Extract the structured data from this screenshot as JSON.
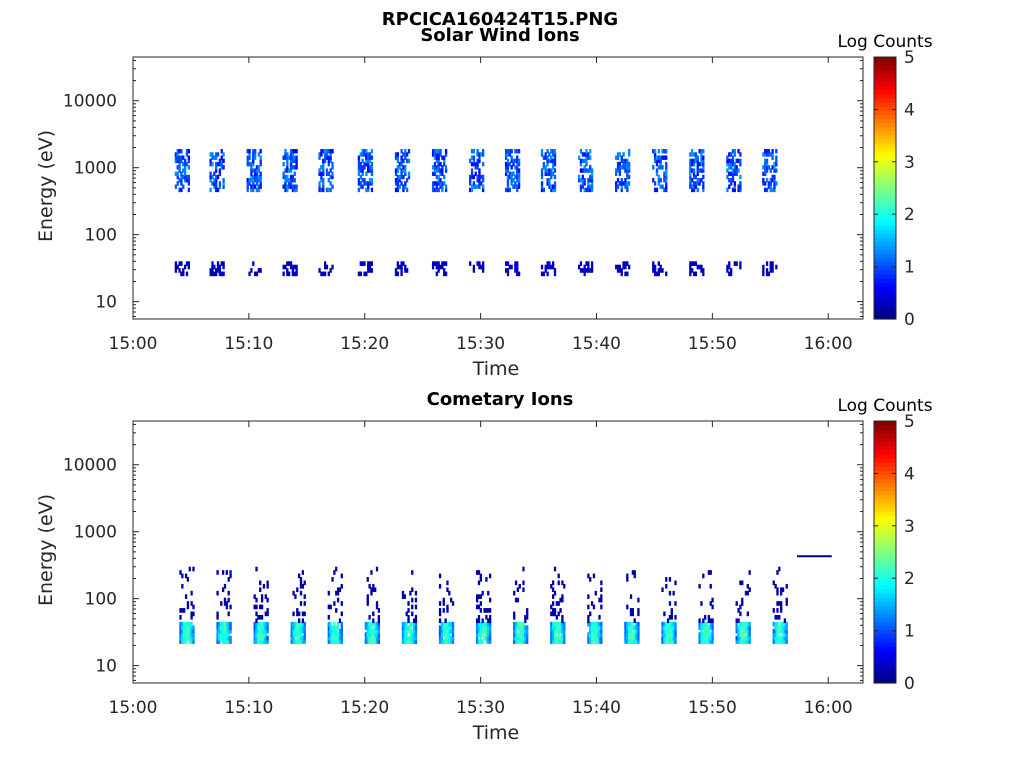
{
  "figure_title": "RPCICA160424T15.PNG",
  "chart_data": [
    {
      "type": "heatmap",
      "title": "Solar Wind Ions",
      "xlabel": "Time",
      "ylabel": "Energy (eV)",
      "yscale": "log",
      "xticks": [
        "15:00",
        "15:10",
        "15:20",
        "15:30",
        "15:40",
        "15:50",
        "16:00"
      ],
      "yticks": [
        "10",
        "100",
        "1000",
        "10000"
      ],
      "xlim_minutes": [
        0,
        63
      ],
      "ylim": [
        5.5,
        45000
      ],
      "colorbar": {
        "label": "Log Counts",
        "range": [
          0,
          5
        ],
        "ticks": [
          "0",
          "1",
          "2",
          "3",
          "4",
          "5"
        ],
        "colormap": "jet"
      },
      "bursts_minutes": [
        3.6,
        6.6,
        9.8,
        12.9,
        16.0,
        19.4,
        22.6,
        25.8,
        29.0,
        32.1,
        35.2,
        38.4,
        41.6,
        44.8,
        48.0,
        51.2,
        54.3
      ],
      "populations": [
        {
          "energy_range_eV": [
            450,
            1900
          ],
          "level": 1.0
        },
        {
          "energy_range_eV": [
            25,
            40
          ],
          "level": 0.3
        }
      ]
    },
    {
      "type": "heatmap",
      "title": "Cometary Ions",
      "xlabel": "Time",
      "ylabel": "Energy (eV)",
      "yscale": "log",
      "xticks": [
        "15:00",
        "15:10",
        "15:20",
        "15:30",
        "15:40",
        "15:50",
        "16:00"
      ],
      "yticks": [
        "10",
        "100",
        "1000",
        "10000"
      ],
      "xlim_minutes": [
        0,
        63
      ],
      "ylim": [
        5.5,
        45000
      ],
      "colorbar": {
        "label": "Log Counts",
        "range": [
          0,
          5
        ],
        "ticks": [
          "0",
          "1",
          "2",
          "3",
          "4",
          "5"
        ],
        "colormap": "jet"
      },
      "bursts_minutes": [
        4.0,
        7.2,
        10.4,
        13.6,
        16.8,
        20.0,
        23.2,
        26.4,
        29.6,
        32.8,
        36.0,
        39.2,
        42.4,
        45.6,
        48.8,
        52.0,
        55.2
      ],
      "populations": [
        {
          "energy_range_eV": [
            22,
            45
          ],
          "level": 1.6
        },
        {
          "energy_range_eV": [
            45,
            300
          ],
          "level": 0.2
        }
      ],
      "line_segment": {
        "x_minutes": [
          57.3,
          60.3
        ],
        "energy_eV": 430
      }
    }
  ]
}
